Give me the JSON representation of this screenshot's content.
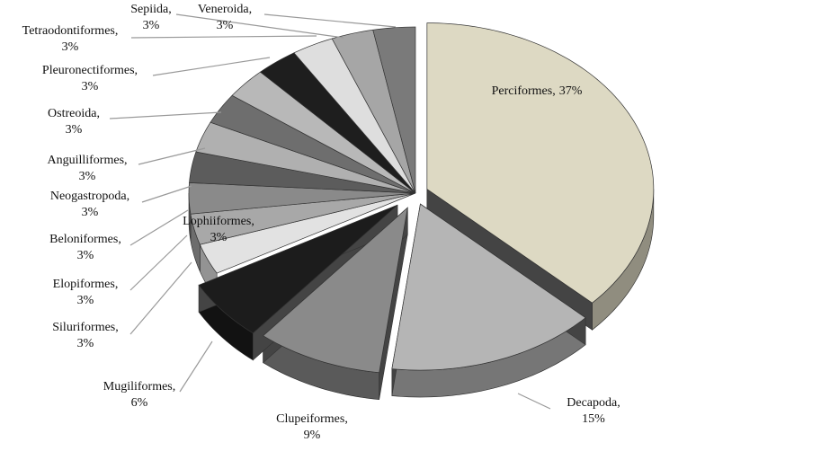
{
  "chart_data": {
    "type": "pie",
    "categories": [
      "Perciformes,",
      "Decapoda,",
      "Clupeiformes,",
      "Mugiliformes,",
      "Lophiiformes,",
      "Siluriformes,",
      "Elopiformes,",
      "Beloniformes,",
      "Neogastropoda,",
      "Anguilliformes,",
      "Ostreoida,",
      "Pleuronectiformes,",
      "Tetraodontiformes,",
      "Sepiida,",
      "Veneroida,"
    ],
    "values": [
      37,
      15,
      9,
      6,
      3,
      3,
      3,
      3,
      3,
      3,
      3,
      3,
      3,
      3,
      3
    ],
    "value_labels": [
      "37%",
      "15%",
      "9%",
      "6%",
      "3%",
      "3%",
      "3%",
      "3%",
      "3%",
      "3%",
      "3%",
      "3%",
      "3%",
      "3%",
      "3%"
    ],
    "colors": [
      "#ddd9c3",
      "#b5b5b5",
      "#8a8a8a",
      "#1c1c1c",
      "#e2e2e2",
      "#a8a8a8",
      "#8a8a8a",
      "#5c5c5c",
      "#b0b0b0",
      "#6e6e6e",
      "#b8b8b8",
      "#1e1e1e",
      "#dedede",
      "#a6a6a6",
      "#7a7a7a"
    ]
  }
}
